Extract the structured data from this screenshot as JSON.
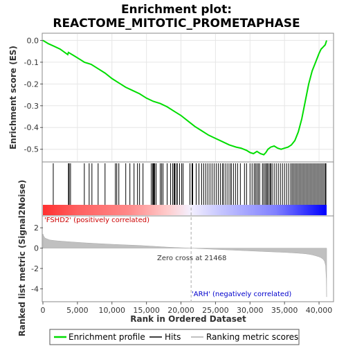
{
  "chart_data": {
    "type": "line",
    "title_line1": "Enrichment plot:",
    "title_line2": "REACTOME_MITOTIC_PROMETAPHASE",
    "es_ylabel": "Enrichment score (ES)",
    "metric_ylabel_line1": "Ranked list metric (Signal2Noise)",
    "xlabel": "Rank in Ordered Dataset",
    "xlim": [
      0,
      42000
    ],
    "es_ylim": [
      -0.555,
      0.03
    ],
    "metric_ylim": [
      -5.2,
      3.1
    ],
    "x_ticks": [
      0,
      5000,
      10000,
      15000,
      20000,
      25000,
      30000,
      35000,
      40000
    ],
    "x_tick_labels": [
      "0",
      "5,000",
      "10,000",
      "15,000",
      "20,000",
      "25,000",
      "30,000",
      "35,000",
      "40,000"
    ],
    "es_ticks": [
      0.0,
      -0.1,
      -0.2,
      -0.3,
      -0.4,
      -0.5
    ],
    "es_tick_labels": [
      "0.0",
      "-0.1",
      "-0.2",
      "-0.3",
      "-0.4",
      "-0.5"
    ],
    "metric_ticks": [
      2,
      0,
      -2,
      -4
    ],
    "metric_tick_labels": [
      "2",
      "0",
      "-2",
      "-4"
    ],
    "enrichment_profile": {
      "x": [
        0,
        800,
        1500,
        2500,
        3600,
        3700,
        4500,
        5500,
        6000,
        7000,
        8000,
        9000,
        10000,
        11000,
        12000,
        13000,
        14000,
        15000,
        16000,
        17000,
        18000,
        19000,
        20000,
        21000,
        22000,
        23000,
        24000,
        25000,
        26000,
        27000,
        28000,
        28700,
        29500,
        30000,
        30500,
        31000,
        31500,
        32000,
        32300,
        32600,
        33000,
        33500,
        34000,
        34500,
        35000,
        35500,
        36000,
        36500,
        37000,
        37500,
        38000,
        38500,
        39000,
        39500,
        40000,
        40300,
        40600,
        40900,
        41100
      ],
      "y": [
        0.0,
        -0.015,
        -0.025,
        -0.04,
        -0.065,
        -0.055,
        -0.07,
        -0.09,
        -0.1,
        -0.11,
        -0.13,
        -0.15,
        -0.175,
        -0.195,
        -0.215,
        -0.23,
        -0.245,
        -0.265,
        -0.28,
        -0.29,
        -0.305,
        -0.325,
        -0.345,
        -0.37,
        -0.395,
        -0.415,
        -0.435,
        -0.45,
        -0.465,
        -0.48,
        -0.49,
        -0.495,
        -0.505,
        -0.515,
        -0.52,
        -0.51,
        -0.52,
        -0.525,
        -0.515,
        -0.5,
        -0.49,
        -0.485,
        -0.495,
        -0.5,
        -0.495,
        -0.49,
        -0.48,
        -0.46,
        -0.42,
        -0.36,
        -0.28,
        -0.2,
        -0.14,
        -0.1,
        -0.06,
        -0.04,
        -0.03,
        -0.02,
        0.0
      ]
    },
    "hits_ranks": [
      1500,
      3700,
      3800,
      4000,
      6000,
      6700,
      7100,
      8000,
      9000,
      10500,
      10700,
      11000,
      12000,
      12600,
      13200,
      13700,
      14000,
      14500,
      15700,
      15900,
      16000,
      16100,
      16200,
      16400,
      17000,
      17200,
      17400,
      18000,
      18500,
      18800,
      19000,
      19100,
      19300,
      19500,
      19800,
      20100,
      20300,
      21300,
      21600,
      21700,
      22200,
      22600,
      23000,
      23300,
      23600,
      23900,
      24200,
      24500,
      24800,
      25100,
      25400,
      25700,
      26000,
      26200,
      26500,
      26800,
      27100,
      27300,
      27600,
      27900,
      28200,
      28600,
      29200,
      29500,
      30000,
      30300,
      30600,
      30800,
      31000,
      31200,
      31400,
      31800,
      32000,
      32200,
      32400,
      32500,
      32700,
      32900,
      33000,
      33200,
      33500,
      33800,
      34100,
      34400,
      34700,
      35000,
      35300,
      35600,
      35900,
      36100,
      36300,
      36500,
      36700,
      36900,
      37100,
      37300,
      37500,
      37700,
      37900,
      38100,
      38300,
      38500,
      38700,
      38900,
      39100,
      39300,
      39500,
      39700,
      39900,
      40100,
      40300,
      40500,
      40700,
      40900,
      41000
    ],
    "ranked_metric": {
      "x": [
        0,
        100,
        300,
        600,
        1000,
        2000,
        4000,
        6000,
        8000,
        10000,
        12000,
        14000,
        16000,
        18000,
        20000,
        21468,
        23000,
        25000,
        27000,
        29000,
        31000,
        33000,
        35000,
        36000,
        37000,
        38000,
        38500,
        39000,
        39500,
        40000,
        40300,
        40600,
        40800,
        40950,
        41050,
        41100
      ],
      "y": [
        1.4,
        1.2,
        1.0,
        0.9,
        0.8,
        0.72,
        0.62,
        0.52,
        0.45,
        0.38,
        0.32,
        0.26,
        0.18,
        0.1,
        0.04,
        0.0,
        -0.06,
        -0.12,
        -0.18,
        -0.24,
        -0.3,
        -0.36,
        -0.42,
        -0.46,
        -0.5,
        -0.55,
        -0.6,
        -0.66,
        -0.75,
        -0.85,
        -0.95,
        -1.1,
        -1.3,
        -1.7,
        -3.0,
        -4.8
      ]
    },
    "zero_cross_label": "Zero cross at 21468",
    "zero_cross_rank": 21468,
    "positive_label": "'FSHD2' (positively correlated)",
    "negative_label": "'ARH' (negatively correlated)",
    "legend": [
      {
        "label": "Enrichment profile",
        "color": "#00dd00"
      },
      {
        "label": "Hits",
        "color": "#000000"
      },
      {
        "label": "Ranking metric scores",
        "color": "#c0c0c0"
      }
    ],
    "colors": {
      "profile": "#00dd00",
      "hits": "#000000",
      "metric_fill": "#c0c0c0",
      "positive_label": "#cc0000",
      "negative_label": "#0000cc",
      "bar_red": "#ff0000",
      "bar_blue": "#0000ff"
    }
  }
}
